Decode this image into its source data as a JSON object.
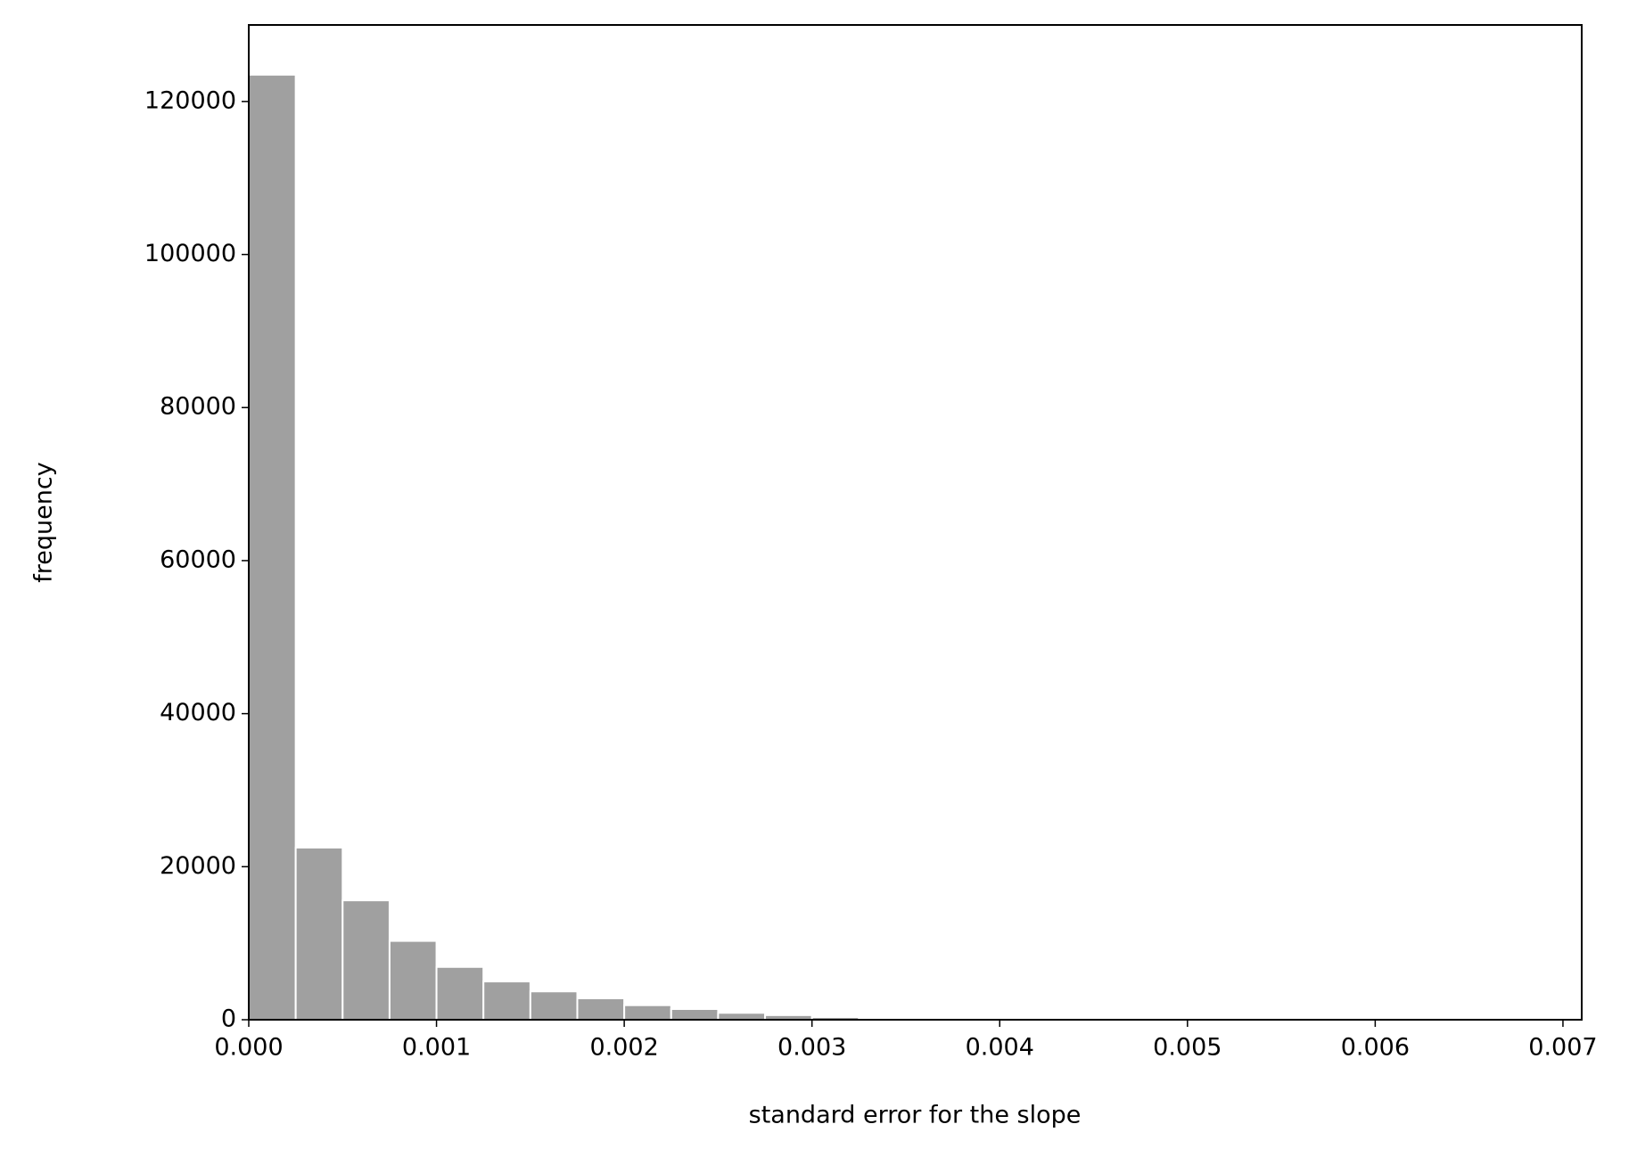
{
  "chart_data": {
    "type": "histogram",
    "xlabel": "standard error for the slope",
    "ylabel": "frequency",
    "bins": [
      0,
      0.00025,
      0.0005,
      0.00075,
      0.001,
      0.00125,
      0.0015,
      0.00175,
      0.002,
      0.00225,
      0.0025,
      0.00275,
      0.003,
      0.00325,
      0.0035,
      0.00375,
      0.004,
      0.00425,
      0.0045,
      0.00475,
      0.005,
      0.00525,
      0.0055,
      0.00575,
      0.006,
      0.00625,
      0.0065,
      0.00675,
      0.007
    ],
    "values": [
      123500,
      22500,
      15600,
      10300,
      6900,
      5000,
      3700,
      2800,
      1900,
      1400,
      900,
      600,
      350,
      200,
      120,
      80,
      50,
      30,
      20,
      15,
      10,
      8,
      5,
      4,
      3,
      2,
      1,
      1
    ],
    "color": "#a0a0a0",
    "xlim": [
      0,
      0.0071
    ],
    "ylim": [
      0,
      130000
    ],
    "xticks": [
      {
        "value": 0,
        "label": "0.000"
      },
      0.001,
      0.002,
      0.003,
      0.004,
      0.005,
      0.006,
      0.007
    ],
    "yticks": [
      0,
      20000,
      40000,
      60000,
      80000,
      100000,
      120000
    ],
    "grid": false
  }
}
